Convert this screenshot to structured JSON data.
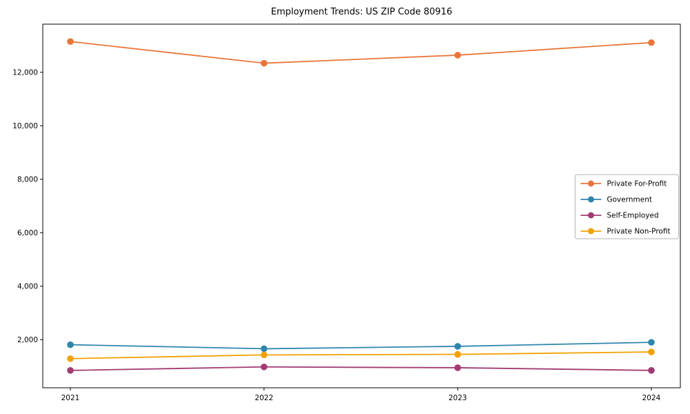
{
  "chart_data": {
    "type": "line",
    "title": "Employment Trends: US ZIP Code 80916",
    "x": [
      2021,
      2022,
      2023,
      2024
    ],
    "xlabel": "",
    "ylabel": "",
    "ylim": [
      200,
      13800
    ],
    "yticks": [
      2000,
      4000,
      6000,
      8000,
      10000,
      12000
    ],
    "grid": false,
    "legend_position": "center right",
    "series": [
      {
        "name": "Private For-Profit",
        "color": "#E8763B",
        "values": [
          13150,
          12340,
          12640,
          13110
        ]
      },
      {
        "name": "Government",
        "color": "#2E86AB",
        "values": [
          1810,
          1660,
          1750,
          1900
        ]
      },
      {
        "name": "Self-Employed",
        "color": "#A23B72",
        "values": [
          850,
          980,
          950,
          850
        ]
      },
      {
        "name": "Private Non-Profit",
        "color": "#F2A104",
        "values": [
          1290,
          1430,
          1450,
          1540
        ]
      }
    ]
  }
}
